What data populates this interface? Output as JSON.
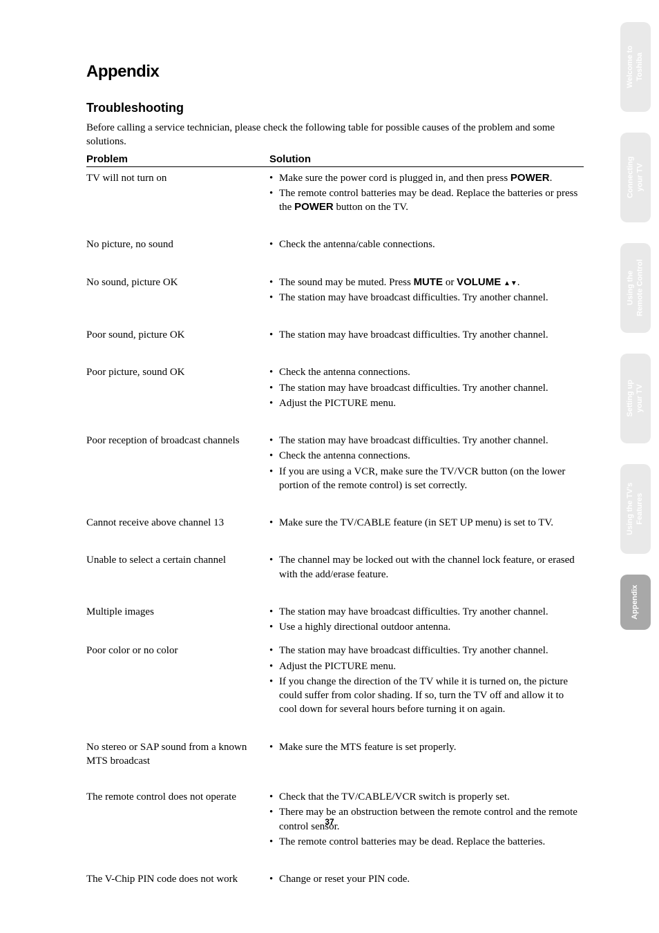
{
  "page_number": "37",
  "section_title": "Appendix",
  "subsection_title": "Troubleshooting",
  "intro": "Before calling a service technician, please check the following table for possible causes of the problem and some solutions.",
  "headers": {
    "problem": "Problem",
    "solution": "Solution"
  },
  "rows": [
    {
      "problem": "TV will not turn on",
      "solutions": [
        {
          "pre": "Make sure the power cord is plugged in, and then press ",
          "bold": "POWER",
          "post": "."
        },
        {
          "pre": "The remote control batteries may be dead. Replace the batteries or press the ",
          "bold": "POWER",
          "post": " button on the TV."
        }
      ]
    },
    {
      "problem": "No picture, no sound",
      "solutions": [
        {
          "pre": "Check the antenna/cable connections."
        }
      ]
    },
    {
      "problem": "No sound, picture OK",
      "solutions": [
        {
          "pre": "The sound may be muted. Press ",
          "bold": "MUTE",
          "post": " or ",
          "bold2": "VOLUME",
          "post2": " ",
          "tri": true,
          "post3": "."
        },
        {
          "pre": "The station may have broadcast difficulties. Try another channel."
        }
      ]
    },
    {
      "problem": "Poor sound, picture OK",
      "solutions": [
        {
          "pre": "The station may have broadcast difficulties. Try another channel."
        }
      ]
    },
    {
      "problem": "Poor picture, sound OK",
      "solutions": [
        {
          "pre": "Check the antenna connections."
        },
        {
          "pre": "The station may have broadcast difficulties. Try another channel."
        },
        {
          "pre": "Adjust the PICTURE menu."
        }
      ]
    },
    {
      "problem": "Poor reception of broadcast channels",
      "solutions": [
        {
          "pre": "The station may have broadcast difficulties. Try another channel."
        },
        {
          "pre": "Check the antenna connections."
        },
        {
          "pre": "If you are using a VCR, make sure the TV/VCR button (on the lower portion of the remote control) is set correctly."
        }
      ]
    },
    {
      "problem": "Cannot receive above channel 13",
      "solutions": [
        {
          "pre": "Make sure the TV/CABLE feature (in SET UP menu) is set to TV."
        }
      ]
    },
    {
      "problem": "Unable to select a certain channel",
      "solutions": [
        {
          "pre": "The channel may be locked out with the channel lock feature, or erased with the add/erase feature."
        }
      ]
    },
    {
      "problem": "Multiple images",
      "tight": true,
      "solutions": [
        {
          "pre": "The station may have broadcast difficulties. Try another channel."
        },
        {
          "pre": "Use a highly directional outdoor antenna."
        }
      ]
    },
    {
      "problem": "Poor color or no color",
      "solutions": [
        {
          "pre": "The station may have broadcast difficulties. Try another channel."
        },
        {
          "pre": "Adjust the PICTURE menu."
        },
        {
          "pre": "If you change the direction of the TV while it is turned on, the picture could suffer from color shading. If so, turn the TV off and allow it to cool down for several hours before turning it on again."
        }
      ]
    },
    {
      "problem": "No stereo or SAP sound from a known MTS broadcast",
      "solutions": [
        {
          "pre": "Make sure the MTS feature is set properly."
        }
      ]
    },
    {
      "problem": "The remote control does not operate",
      "solutions": [
        {
          "pre": "Check that the TV/CABLE/VCR switch is properly set."
        },
        {
          "pre": "There may be an obstruction between the remote control and the remote control sensor."
        },
        {
          "pre": "The remote control batteries may be dead. Replace the batteries."
        }
      ]
    },
    {
      "problem": "The V-Chip PIN code does not work",
      "solutions": [
        {
          "pre": "Change or reset your PIN code."
        }
      ]
    }
  ],
  "tabs": [
    {
      "line1": "Welcome to",
      "line2": "Toshiba",
      "active": false
    },
    {
      "line1": "Connecting",
      "line2": "your TV",
      "active": false
    },
    {
      "line1": "Using the",
      "line2": "Remote Control",
      "active": false
    },
    {
      "line1": "Setting up",
      "line2": "your TV",
      "active": false
    },
    {
      "line1": "Using the TV's",
      "line2": "Features",
      "active": false
    },
    {
      "line1": "Appendix",
      "line2": "",
      "active": true,
      "short": true
    }
  ],
  "colors": {
    "tab_inactive_bg": "#e9e9e9",
    "tab_active_bg": "#a8a8a8",
    "tab_text": "#ffffff",
    "text": "#000000",
    "background": "#ffffff"
  }
}
